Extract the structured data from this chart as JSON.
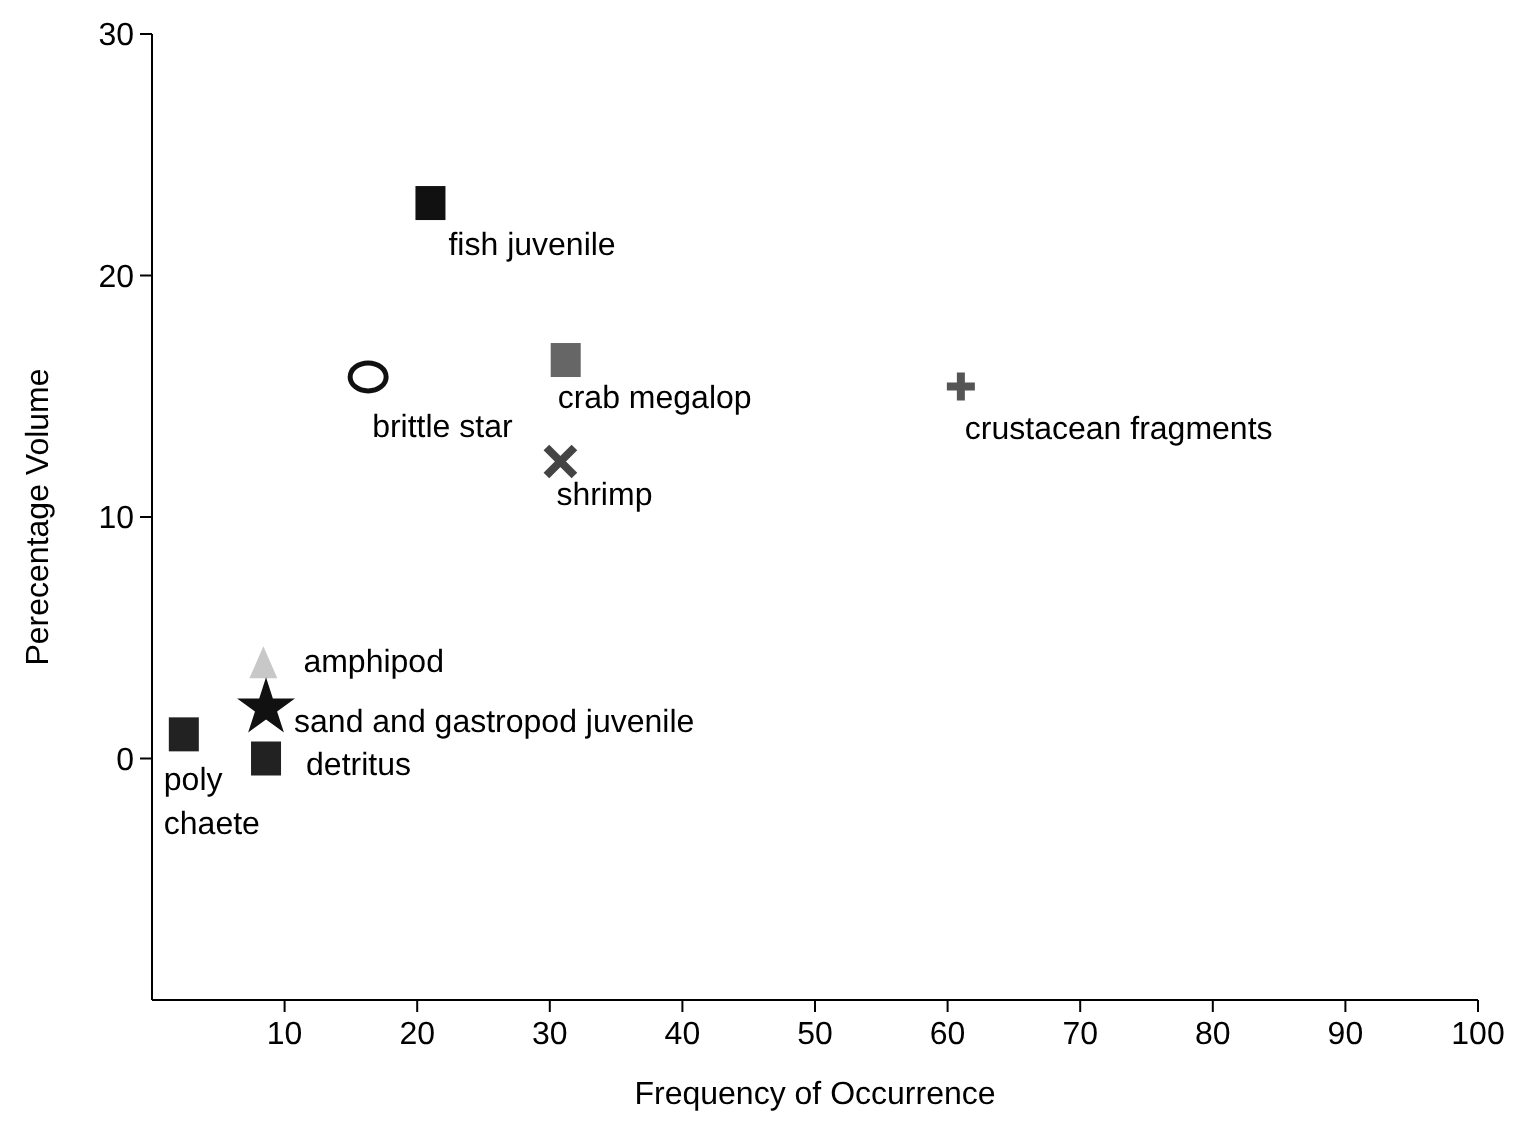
{
  "chart_data": {
    "type": "scatter",
    "xlabel": "Frequency of Occurrence",
    "ylabel": "Perecentage Volume",
    "xlim": [
      0,
      100
    ],
    "xticks": [
      10,
      20,
      30,
      40,
      50,
      60,
      70,
      80,
      90,
      100
    ],
    "ylim": [
      -10,
      30
    ],
    "yticks": [
      0,
      10,
      20,
      30
    ],
    "grid": false,
    "series": [
      {
        "name": "fish juvenile",
        "color": "#111111",
        "marker": "square",
        "x": [
          21
        ],
        "values": [
          23
        ]
      },
      {
        "name": "brittle star",
        "color": "#111111",
        "marker": "circle",
        "x": [
          16.3
        ],
        "values": [
          15.8
        ]
      },
      {
        "name": "crab megalop",
        "color": "#666666",
        "marker": "square",
        "x": [
          31.2
        ],
        "values": [
          16.5
        ]
      },
      {
        "name": "shrimp",
        "color": "#444444",
        "marker": "cross",
        "x": [
          30.8
        ],
        "values": [
          12.3
        ]
      },
      {
        "name": "crustacean fragments",
        "color": "#555555",
        "marker": "cross",
        "x": [
          61
        ],
        "values": [
          15.4
        ]
      },
      {
        "name": "amphipod",
        "color": "#c8c8c8",
        "marker": "triangle",
        "x": [
          8.4
        ],
        "values": [
          3.9
        ]
      },
      {
        "name": "sand and gastropod juvenile",
        "color": "#111111",
        "marker": "star",
        "x": [
          8.6
        ],
        "values": [
          2.1
        ]
      },
      {
        "name": "detritus",
        "color": "#222222",
        "marker": "square",
        "x": [
          8.6
        ],
        "values": [
          0
        ]
      },
      {
        "name": "poly chaete",
        "color": "#222222",
        "marker": "square",
        "x": [
          2.4
        ],
        "values": [
          1.0
        ]
      }
    ]
  }
}
